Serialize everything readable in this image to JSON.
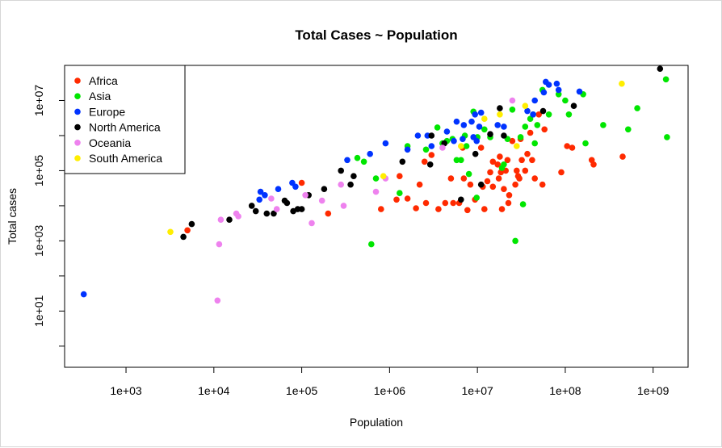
{
  "chart_data": {
    "type": "scatter",
    "title": "Total Cases ~ Population",
    "xlabel": "Population",
    "ylabel": "Total cases",
    "x_scale": "log10",
    "y_scale": "log10",
    "xlim": [
      200,
      2500000000
    ],
    "ylim": [
      0.25,
      100000000
    ],
    "x_ticks": [
      {
        "value": 1000,
        "label": "1e+03"
      },
      {
        "value": 10000,
        "label": "1e+04"
      },
      {
        "value": 100000,
        "label": "1e+05"
      },
      {
        "value": 1000000,
        "label": "1e+06"
      },
      {
        "value": 10000000,
        "label": "1e+07"
      },
      {
        "value": 100000000,
        "label": "1e+08"
      },
      {
        "value": 1000000000,
        "label": "1e+09"
      }
    ],
    "y_ticks": [
      {
        "value": 10,
        "label": "1e+01"
      },
      {
        "value": 1000,
        "label": "1e+03"
      },
      {
        "value": 100000,
        "label": "1e+05"
      },
      {
        "value": 10000000,
        "label": "1e+07"
      }
    ],
    "grid": false,
    "legend_position": "top-left",
    "series": [
      {
        "name": "Africa",
        "color": "#ff2a00",
        "points": [
          [
            5000,
            2000
          ],
          [
            100000,
            45000
          ],
          [
            200000,
            6000
          ],
          [
            2500000,
            180000
          ],
          [
            800000,
            8000
          ],
          [
            1300000,
            70000
          ],
          [
            1200000,
            15000
          ],
          [
            1600000,
            16000
          ],
          [
            2000000,
            8500
          ],
          [
            2200000,
            40000
          ],
          [
            2600000,
            12000
          ],
          [
            3000000,
            280000
          ],
          [
            3600000,
            8000
          ],
          [
            4300000,
            12000
          ],
          [
            5000000,
            60000
          ],
          [
            5300000,
            12000
          ],
          [
            6200000,
            12000
          ],
          [
            6800000,
            450000
          ],
          [
            7000000,
            60000
          ],
          [
            7700000,
            7500
          ],
          [
            8300000,
            40000
          ],
          [
            9400000,
            15000
          ],
          [
            11000000,
            450000
          ],
          [
            11500000,
            35000
          ],
          [
            12000000,
            8000
          ],
          [
            13000000,
            50000
          ],
          [
            14000000,
            90000
          ],
          [
            15000000,
            180000
          ],
          [
            15000000,
            35000
          ],
          [
            17000000,
            150000
          ],
          [
            17500000,
            60000
          ],
          [
            18000000,
            250000
          ],
          [
            18500000,
            90000
          ],
          [
            19000000,
            8000
          ],
          [
            20000000,
            30000
          ],
          [
            21000000,
            100000
          ],
          [
            22000000,
            200000
          ],
          [
            22500000,
            12000
          ],
          [
            23000000,
            20000
          ],
          [
            25000000,
            700000
          ],
          [
            27000000,
            40000
          ],
          [
            28000000,
            100000
          ],
          [
            29000000,
            70000
          ],
          [
            30000000,
            60000
          ],
          [
            31000000,
            800000
          ],
          [
            32000000,
            200000
          ],
          [
            35000000,
            100000
          ],
          [
            37000000,
            300000
          ],
          [
            40000000,
            1200000
          ],
          [
            42000000,
            200000
          ],
          [
            45000000,
            60000
          ],
          [
            50000000,
            4000000
          ],
          [
            55000000,
            40000
          ],
          [
            58000000,
            1500000
          ],
          [
            90000000,
            90000
          ],
          [
            105000000,
            500000
          ],
          [
            120000000,
            450000
          ],
          [
            200000000,
            200000
          ],
          [
            210000000,
            150000
          ],
          [
            450000000,
            250000
          ]
        ]
      },
      {
        "name": "Asia",
        "color": "#00e600",
        "points": [
          [
            430000,
            230000
          ],
          [
            510000,
            180000
          ],
          [
            620000,
            800
          ],
          [
            700000,
            60000
          ],
          [
            1300000,
            23000
          ],
          [
            1600000,
            500000
          ],
          [
            2600000,
            400000
          ],
          [
            3500000,
            1700000
          ],
          [
            4000000,
            600000
          ],
          [
            4500000,
            700000
          ],
          [
            5200000,
            800000
          ],
          [
            5800000,
            200000
          ],
          [
            6500000,
            200000
          ],
          [
            7200000,
            1000000
          ],
          [
            7500000,
            500000
          ],
          [
            8000000,
            80000
          ],
          [
            9000000,
            4800000
          ],
          [
            9800000,
            17000
          ],
          [
            10000000,
            900000
          ],
          [
            12000000,
            1500000
          ],
          [
            14000000,
            900000
          ],
          [
            19000000,
            120000
          ],
          [
            20000000,
            150000
          ],
          [
            22000000,
            800000
          ],
          [
            25000000,
            5500000
          ],
          [
            27000000,
            1000
          ],
          [
            31000000,
            900000
          ],
          [
            33000000,
            11000
          ],
          [
            35000000,
            1800000
          ],
          [
            40000000,
            3000000
          ],
          [
            43000000,
            4000000
          ],
          [
            45000000,
            600000
          ],
          [
            48000000,
            2000000
          ],
          [
            55000000,
            20000000
          ],
          [
            65000000,
            4000000
          ],
          [
            84000000,
            15000000
          ],
          [
            100000000,
            10000000
          ],
          [
            110000000,
            4000000
          ],
          [
            160000000,
            15000000
          ],
          [
            170000000,
            600000
          ],
          [
            270000000,
            2000000
          ],
          [
            520000000,
            1500000
          ],
          [
            660000000,
            6000000
          ],
          [
            1400000000,
            40000000
          ],
          [
            1440000000,
            900000
          ]
        ]
      },
      {
        "name": "Europe",
        "color": "#0033ff",
        "points": [
          [
            330,
            30
          ],
          [
            33000,
            15000
          ],
          [
            34000,
            25000
          ],
          [
            38000,
            20000
          ],
          [
            54000,
            30000
          ],
          [
            78000,
            45000
          ],
          [
            85000,
            35000
          ],
          [
            330000,
            200000
          ],
          [
            600000,
            300000
          ],
          [
            900000,
            600000
          ],
          [
            1600000,
            400000
          ],
          [
            2100000,
            1000000
          ],
          [
            2700000,
            1000000
          ],
          [
            3000000,
            500000
          ],
          [
            4500000,
            1300000
          ],
          [
            5400000,
            700000
          ],
          [
            5800000,
            2500000
          ],
          [
            6800000,
            800000
          ],
          [
            7000000,
            2000000
          ],
          [
            8600000,
            2500000
          ],
          [
            9000000,
            900000
          ],
          [
            9400000,
            4000000
          ],
          [
            9800000,
            700000
          ],
          [
            10500000,
            1800000
          ],
          [
            11000000,
            4500000
          ],
          [
            17000000,
            2000000
          ],
          [
            20000000,
            1800000
          ],
          [
            37000000,
            5000000
          ],
          [
            43000000,
            4000000
          ],
          [
            45000000,
            10000000
          ],
          [
            57000000,
            17000000
          ],
          [
            60000000,
            34000000
          ],
          [
            65000000,
            28000000
          ],
          [
            80000000,
            30000000
          ],
          [
            84000000,
            20000000
          ],
          [
            145000000,
            18000000
          ]
        ]
      },
      {
        "name": "North America",
        "color": "#000000",
        "points": [
          [
            4500,
            1300
          ],
          [
            5600,
            3000
          ],
          [
            15000,
            4000
          ],
          [
            27000,
            10000
          ],
          [
            30000,
            7000
          ],
          [
            40000,
            6000
          ],
          [
            48000,
            6000
          ],
          [
            64000,
            14000
          ],
          [
            68000,
            12000
          ],
          [
            80000,
            7000
          ],
          [
            90000,
            8000
          ],
          [
            100000,
            8000
          ],
          [
            120000,
            20000
          ],
          [
            180000,
            30000
          ],
          [
            280000,
            100000
          ],
          [
            360000,
            40000
          ],
          [
            390000,
            70000
          ],
          [
            1400000,
            180000
          ],
          [
            2900000,
            150000
          ],
          [
            3000000,
            1000000
          ],
          [
            4200000,
            600000
          ],
          [
            6500000,
            15000
          ],
          [
            9500000,
            300000
          ],
          [
            11000000,
            40000
          ],
          [
            14000000,
            1100000
          ],
          [
            18000000,
            6000000
          ],
          [
            20000000,
            1000000
          ],
          [
            56000000,
            5000000
          ],
          [
            125000000,
            7000000
          ],
          [
            1200000000,
            80000000
          ]
        ]
      },
      {
        "name": "Oceania",
        "color": "#ee82ee",
        "points": [
          [
            11000,
            20
          ],
          [
            11500,
            800
          ],
          [
            12000,
            4000
          ],
          [
            18000,
            6000
          ],
          [
            19000,
            5000
          ],
          [
            45000,
            16000
          ],
          [
            52000,
            8000
          ],
          [
            110000,
            20000
          ],
          [
            130000,
            3200
          ],
          [
            170000,
            14000
          ],
          [
            280000,
            40000
          ],
          [
            300000,
            10000
          ],
          [
            700000,
            25000
          ],
          [
            900000,
            60000
          ],
          [
            4000000,
            450000
          ],
          [
            25000000,
            10000000
          ]
        ]
      },
      {
        "name": "South America",
        "color": "#ffee00",
        "points": [
          [
            3200,
            1800
          ],
          [
            850000,
            70000
          ],
          [
            6500000,
            500000
          ],
          [
            12000000,
            3000000
          ],
          [
            18000000,
            4000000
          ],
          [
            28000000,
            500000
          ],
          [
            35000000,
            7000000
          ],
          [
            440000000,
            30000000
          ]
        ]
      }
    ]
  }
}
